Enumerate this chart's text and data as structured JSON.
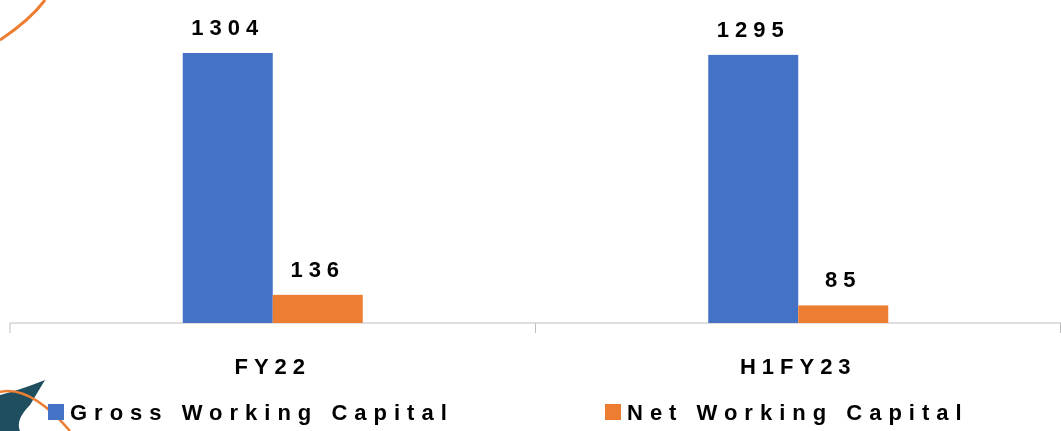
{
  "chart_data": {
    "type": "bar",
    "categories": [
      "FY22",
      "H1FY23"
    ],
    "series": [
      {
        "name": "Gross Working Capital",
        "color": "#4472c4",
        "values": [
          1304,
          1295
        ]
      },
      {
        "name": "Net Working Capital",
        "color": "#ed7d31",
        "values": [
          136,
          85
        ]
      }
    ],
    "data_labels": true,
    "legend": "bottom"
  }
}
